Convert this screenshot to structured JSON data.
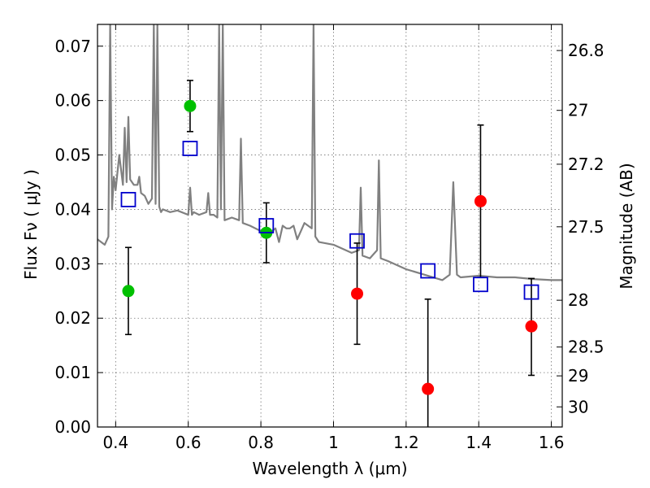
{
  "chart_data": {
    "type": "scatter",
    "xlabel": "Wavelength  λ (μm)",
    "ylabel": "Flux  Fν  ( μJy )",
    "y2label": "Magnitude (AB)",
    "xlim": [
      0.35,
      1.63
    ],
    "ylim": [
      0.0,
      0.074
    ],
    "grid": true,
    "x_ticks": [
      0.4,
      0.6,
      0.8,
      1.0,
      1.2,
      1.4,
      1.6
    ],
    "x_tick_labels": [
      "0.4",
      "0.6",
      "0.8",
      "1",
      "1.2",
      "1.4",
      "1.6"
    ],
    "y_ticks": [
      0.0,
      0.01,
      0.02,
      0.03,
      0.04,
      0.05,
      0.06,
      0.07
    ],
    "y_tick_labels": [
      "0.00",
      "0.01",
      "0.02",
      "0.03",
      "0.04",
      "0.05",
      "0.06",
      "0.07"
    ],
    "y2_ticks": [
      {
        "label": "26.8",
        "flux": 0.0692
      },
      {
        "label": "27",
        "flux": 0.0582
      },
      {
        "label": "27.2",
        "flux": 0.0483
      },
      {
        "label": "27.5",
        "flux": 0.0368
      },
      {
        "label": "28",
        "flux": 0.0233
      },
      {
        "label": "28.5",
        "flux": 0.0147
      },
      {
        "label": "29",
        "flux": 0.0094
      },
      {
        "label": "30",
        "flux": 0.0037
      }
    ],
    "series": [
      {
        "name": "SED model",
        "kind": "line",
        "color": "#808080",
        "x": [
          0.35,
          0.37,
          0.38,
          0.385,
          0.39,
          0.395,
          0.4,
          0.41,
          0.42,
          0.425,
          0.43,
          0.435,
          0.44,
          0.45,
          0.46,
          0.465,
          0.47,
          0.48,
          0.49,
          0.5,
          0.505,
          0.51,
          0.515,
          0.52,
          0.525,
          0.53,
          0.55,
          0.57,
          0.6,
          0.605,
          0.61,
          0.615,
          0.63,
          0.65,
          0.655,
          0.66,
          0.67,
          0.68,
          0.685,
          0.69,
          0.695,
          0.7,
          0.72,
          0.74,
          0.745,
          0.75,
          0.77,
          0.8,
          0.82,
          0.84,
          0.85,
          0.86,
          0.87,
          0.88,
          0.89,
          0.9,
          0.91,
          0.92,
          0.93,
          0.94,
          0.945,
          0.95,
          0.96,
          1.0,
          1.05,
          1.07,
          1.075,
          1.08,
          1.1,
          1.12,
          1.125,
          1.13,
          1.15,
          1.2,
          1.25,
          1.3,
          1.32,
          1.33,
          1.34,
          1.35,
          1.4,
          1.45,
          1.5,
          1.55,
          1.6,
          1.63
        ],
        "y": [
          0.0345,
          0.0335,
          0.035,
          0.074,
          0.04,
          0.046,
          0.0435,
          0.05,
          0.0445,
          0.055,
          0.045,
          0.057,
          0.0455,
          0.0445,
          0.0445,
          0.046,
          0.043,
          0.0425,
          0.041,
          0.042,
          0.074,
          0.041,
          0.074,
          0.0405,
          0.0395,
          0.04,
          0.0395,
          0.0398,
          0.039,
          0.044,
          0.039,
          0.0395,
          0.039,
          0.0395,
          0.043,
          0.039,
          0.039,
          0.0385,
          0.074,
          0.04,
          0.074,
          0.038,
          0.0385,
          0.038,
          0.053,
          0.0375,
          0.037,
          0.036,
          0.0355,
          0.0365,
          0.034,
          0.037,
          0.0365,
          0.0365,
          0.037,
          0.0345,
          0.036,
          0.0375,
          0.037,
          0.0365,
          0.074,
          0.035,
          0.034,
          0.0335,
          0.032,
          0.0325,
          0.044,
          0.0315,
          0.031,
          0.0325,
          0.049,
          0.031,
          0.0305,
          0.029,
          0.028,
          0.027,
          0.028,
          0.045,
          0.028,
          0.0275,
          0.0278,
          0.0275,
          0.0275,
          0.0272,
          0.027,
          0.027
        ]
      },
      {
        "name": "green points",
        "kind": "errorbar",
        "color": "#00c000",
        "x": [
          0.435,
          0.605,
          0.815
        ],
        "y": [
          0.025,
          0.059,
          0.0357
        ],
        "yerr_low": [
          0.008,
          0.0047,
          0.0055
        ],
        "yerr_high": [
          0.008,
          0.0047,
          0.0055
        ]
      },
      {
        "name": "red points",
        "kind": "errorbar",
        "color": "#ff0000",
        "x": [
          1.065,
          1.26,
          1.405,
          1.545
        ],
        "y": [
          0.0245,
          0.007,
          0.0415,
          0.0185
        ],
        "yerr_low": [
          0.0093,
          0.007,
          0.014,
          0.009
        ],
        "yerr_high": [
          0.0093,
          0.0165,
          0.014,
          0.0088
        ]
      },
      {
        "name": "model photometry",
        "kind": "open-square",
        "color": "#0000cc",
        "x": [
          0.435,
          0.605,
          0.815,
          1.065,
          1.26,
          1.405,
          1.545
        ],
        "y": [
          0.0418,
          0.0512,
          0.037,
          0.0342,
          0.0287,
          0.0262,
          0.0248
        ]
      }
    ]
  }
}
